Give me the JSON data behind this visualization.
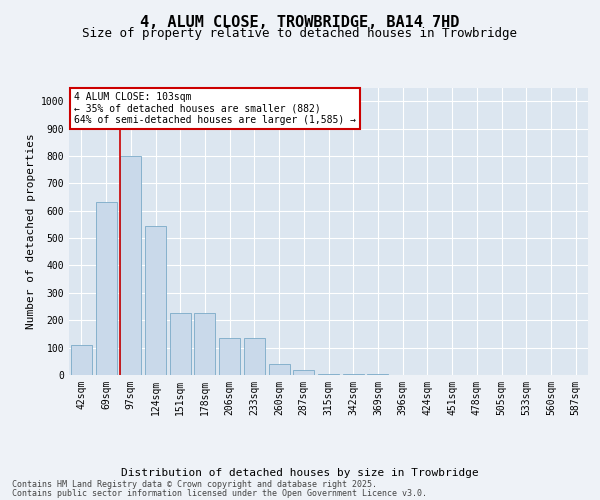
{
  "title": "4, ALUM CLOSE, TROWBRIDGE, BA14 7HD",
  "subtitle": "Size of property relative to detached houses in Trowbridge",
  "xlabel": "Distribution of detached houses by size in Trowbridge",
  "ylabel": "Number of detached properties",
  "categories": [
    "42sqm",
    "69sqm",
    "97sqm",
    "124sqm",
    "151sqm",
    "178sqm",
    "206sqm",
    "233sqm",
    "260sqm",
    "287sqm",
    "315sqm",
    "342sqm",
    "369sqm",
    "396sqm",
    "424sqm",
    "451sqm",
    "478sqm",
    "505sqm",
    "533sqm",
    "560sqm",
    "587sqm"
  ],
  "values": [
    110,
    630,
    800,
    545,
    225,
    225,
    135,
    135,
    40,
    20,
    5,
    5,
    5,
    0,
    0,
    0,
    0,
    0,
    0,
    0,
    0
  ],
  "bar_color": "#c9d9ea",
  "bar_edge_color": "#7aaac8",
  "vline_x_idx": 2,
  "vline_color": "#cc0000",
  "annotation_text": "4 ALUM CLOSE: 103sqm\n← 35% of detached houses are smaller (882)\n64% of semi-detached houses are larger (1,585) →",
  "annotation_box_color": "#ffffff",
  "annotation_box_edge_color": "#cc0000",
  "ylim": [
    0,
    1050
  ],
  "yticks": [
    0,
    100,
    200,
    300,
    400,
    500,
    600,
    700,
    800,
    900,
    1000
  ],
  "background_color": "#eef2f7",
  "footer_line1": "Contains HM Land Registry data © Crown copyright and database right 2025.",
  "footer_line2": "Contains public sector information licensed under the Open Government Licence v3.0.",
  "title_fontsize": 11,
  "subtitle_fontsize": 9,
  "ylabel_fontsize": 8,
  "xlabel_fontsize": 8,
  "tick_fontsize": 7,
  "annot_fontsize": 7,
  "footer_fontsize": 6,
  "grid_color": "#ffffff",
  "grid_linewidth": 0.8,
  "axis_bg_color": "#dce6f0"
}
